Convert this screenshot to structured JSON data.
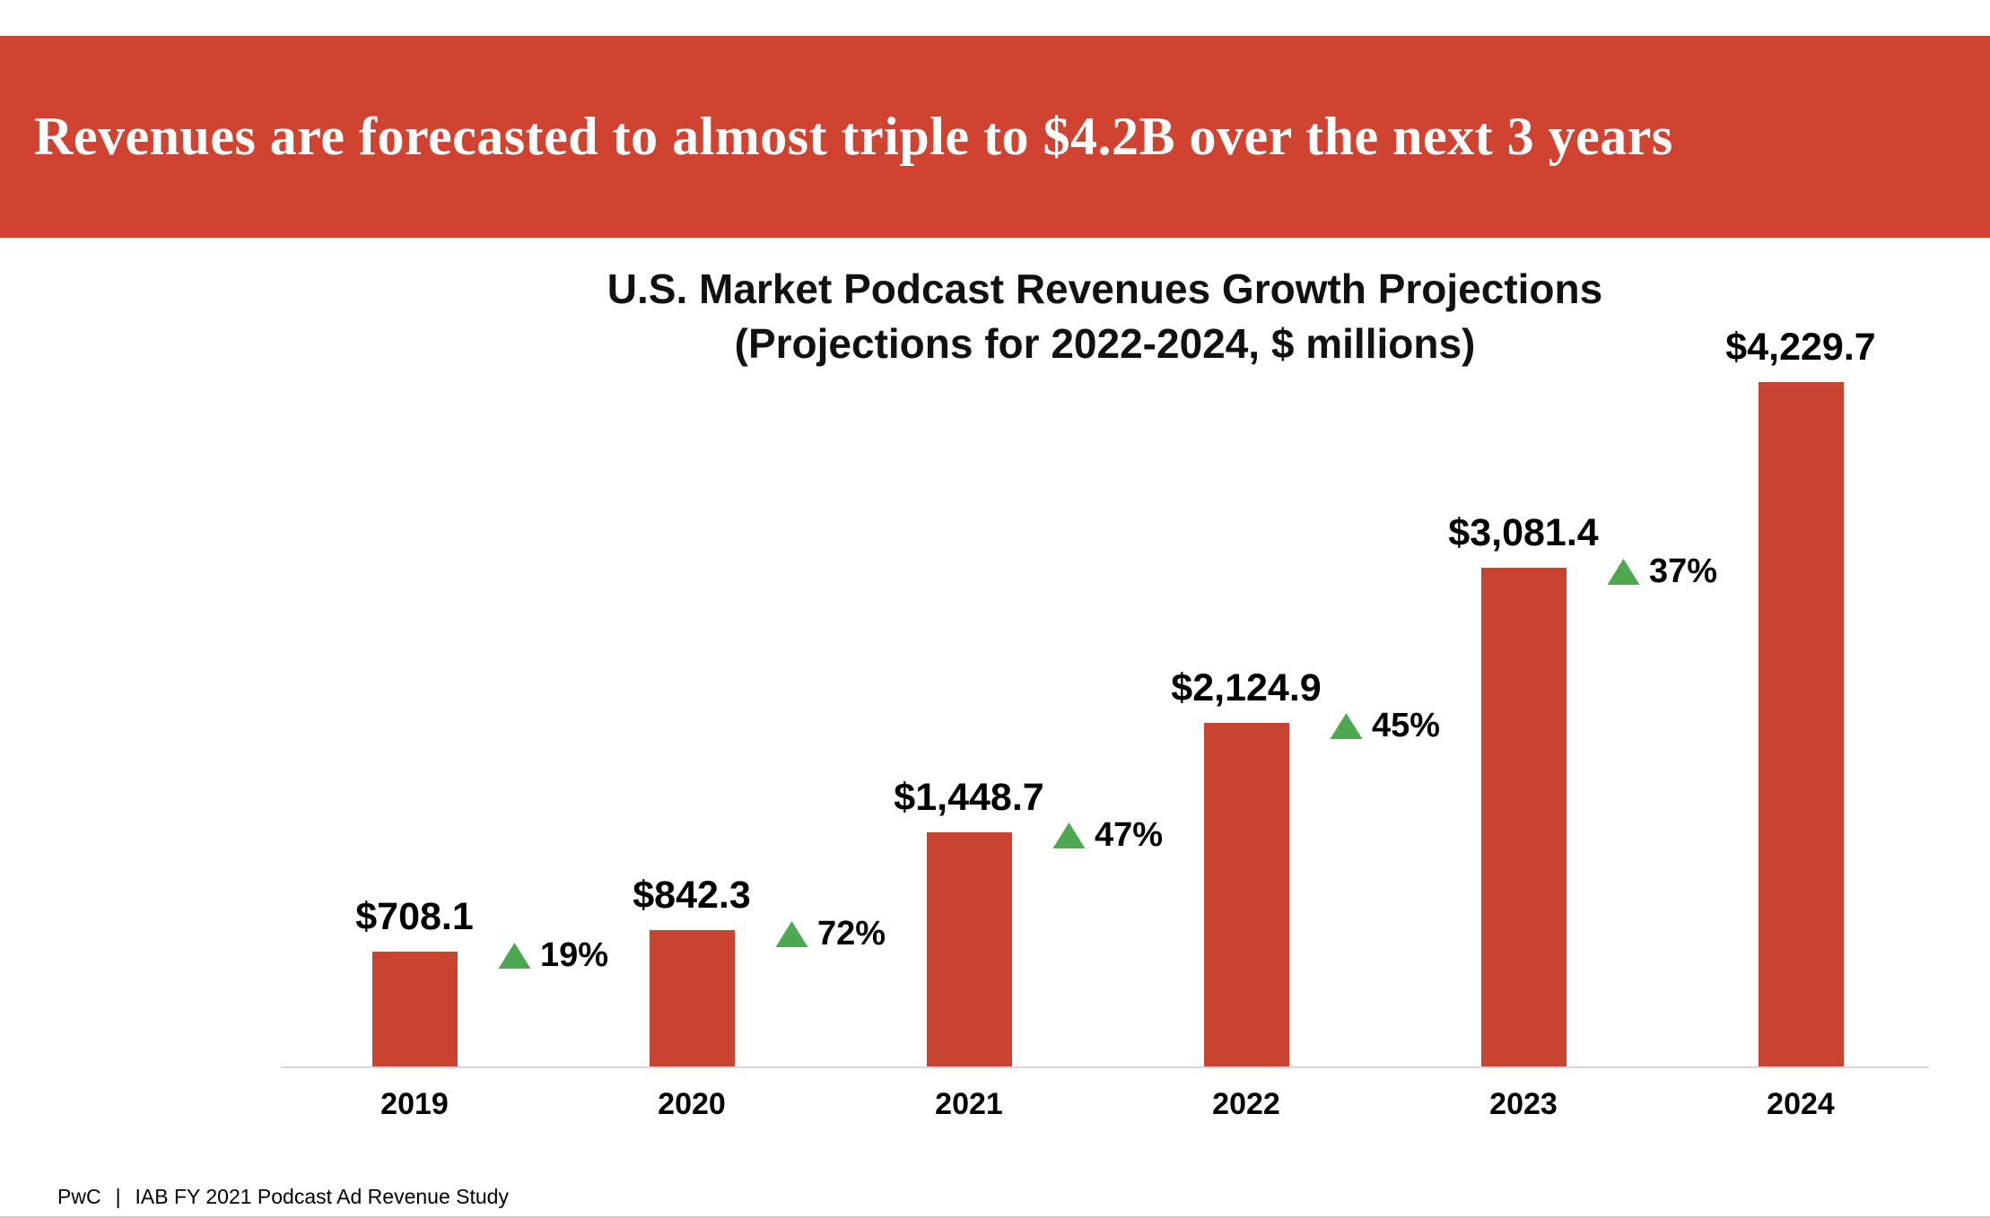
{
  "banner": {
    "text": "Revenues are forecasted to almost triple to $4.2B over the next 3 years"
  },
  "chart_data": {
    "type": "bar",
    "title": "U.S. Market Podcast Revenues Growth Projections",
    "subtitle": "(Projections for 2022-2024, $ millions)",
    "categories": [
      "2019",
      "2020",
      "2021",
      "2022",
      "2023",
      "2024"
    ],
    "values": [
      708.1,
      842.3,
      1448.7,
      2124.9,
      3081.4,
      4229.7
    ],
    "value_labels": [
      "$708.1",
      "$842.3",
      "$1,448.7",
      "$2,124.9",
      "$3,081.4",
      "$4,229.7"
    ],
    "growth_labels": [
      "19%",
      "72%",
      "47%",
      "45%",
      "37%"
    ],
    "ylim": [
      0,
      4500
    ],
    "grid": false,
    "legend": false
  },
  "footer": {
    "brand": "PwC",
    "separator": "|",
    "text": "IAB FY 2021 Podcast Ad Revenue Study"
  },
  "colors": {
    "banner_bg": "#cf4330",
    "bar": "#c94331",
    "growth_triangle": "#4ea852",
    "axis_line": "#d8d8d8"
  }
}
